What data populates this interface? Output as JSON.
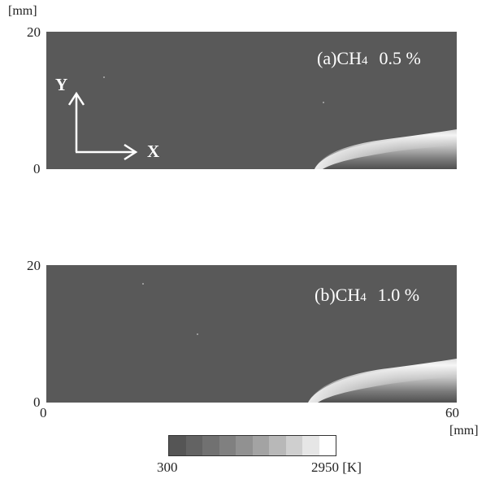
{
  "y_unit": "[mm]",
  "x_unit": "[mm]",
  "panel_a": {
    "label_prefix": "(a)",
    "species": "CH",
    "subscript": "4",
    "concentration": "0.5 %",
    "y_max": "20",
    "y_min": "0"
  },
  "panel_b": {
    "label_prefix": "(b)",
    "species": "CH",
    "subscript": "4",
    "concentration": "1.0 %",
    "y_max": "20",
    "y_min": "0",
    "x_min": "0",
    "x_max": "60"
  },
  "axes_indicator": {
    "y": "Y",
    "x": "X"
  },
  "colorbar": {
    "min": "300",
    "max": "2950 [K]",
    "colors": [
      "#555555",
      "#636363",
      "#717171",
      "#808080",
      "#919191",
      "#a3a3a3",
      "#b8b8b8",
      "#cfcfcf",
      "#e6e6e6",
      "#ffffff"
    ]
  }
}
